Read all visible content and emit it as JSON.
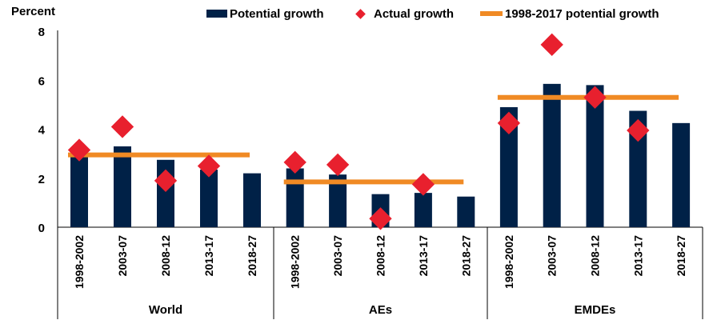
{
  "chart_data": {
    "type": "bar",
    "ylabel": "Percent",
    "ylim": [
      0,
      8
    ],
    "yticks": [
      0,
      2,
      4,
      6,
      8
    ],
    "colors": {
      "potential": "#002147",
      "actual": "#e8202e",
      "average": "#f08a24"
    },
    "legend": {
      "position": "top",
      "potential": "Potential growth",
      "actual": "Actual growth",
      "average": "1998-2017 potential growth"
    },
    "periods": [
      "1998-2002",
      "2003-07",
      "2008-12",
      "2013-17",
      "2018-27"
    ],
    "groups": [
      {
        "name": "World",
        "potential": [
          3.0,
          3.3,
          2.75,
          2.35,
          2.2
        ],
        "actual": [
          3.15,
          4.1,
          1.9,
          2.5,
          null
        ],
        "average": 2.95
      },
      {
        "name": "AEs",
        "potential": [
          2.4,
          2.15,
          1.35,
          1.4,
          1.25
        ],
        "actual": [
          2.65,
          2.55,
          0.35,
          1.75,
          null
        ],
        "average": 1.85
      },
      {
        "name": "EMDEs",
        "potential": [
          4.9,
          5.85,
          5.8,
          4.75,
          4.25
        ],
        "actual": [
          4.25,
          7.45,
          5.3,
          3.95,
          null
        ],
        "average": 5.3
      }
    ]
  }
}
